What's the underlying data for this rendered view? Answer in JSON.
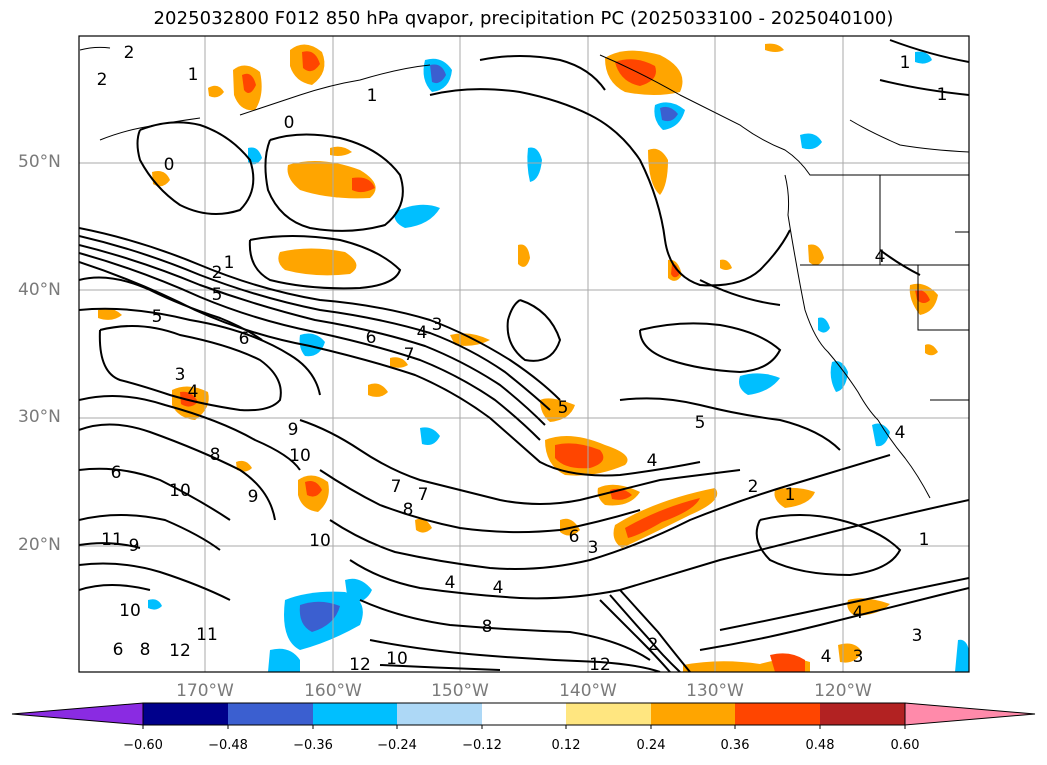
{
  "title": "2025032800 F012 850 hPa qvapor, precipitation PC (2025033100 - 2025040100)",
  "map": {
    "lat_labels": [
      "50°N",
      "40°N",
      "30°N",
      "20°N"
    ],
    "lon_labels": [
      "170°W",
      "160°W",
      "150°W",
      "140°W",
      "130°W",
      "120°W"
    ],
    "contour_labels": [
      "2",
      "2",
      "1",
      "1",
      "0",
      "0",
      "1",
      "1",
      "2",
      "1",
      "5",
      "6",
      "5",
      "4",
      "3",
      "4",
      "6",
      "7",
      "4",
      "3",
      "5",
      "4",
      "9",
      "10",
      "8",
      "6",
      "10",
      "9",
      "8",
      "10",
      "7",
      "7",
      "11",
      "9",
      "10",
      "11",
      "12",
      "6",
      "8",
      "10",
      "12",
      "6",
      "3",
      "4",
      "4",
      "2",
      "1",
      "3",
      "8",
      "5",
      "4",
      "3",
      "4",
      "1",
      "4",
      "2",
      "12"
    ]
  },
  "colorbar": {
    "ticks": [
      "−0.60",
      "−0.48",
      "−0.36",
      "−0.24",
      "−0.12",
      "0.12",
      "0.24",
      "0.36",
      "0.48",
      "0.60"
    ],
    "colors": [
      "#8a2be2",
      "#00008b",
      "#3b5fd0",
      "#00bfff",
      "#add8f6",
      "#ffffff",
      "#ffe680",
      "#ffa500",
      "#ff4500",
      "#b22222",
      "#ff8aaa"
    ]
  }
}
